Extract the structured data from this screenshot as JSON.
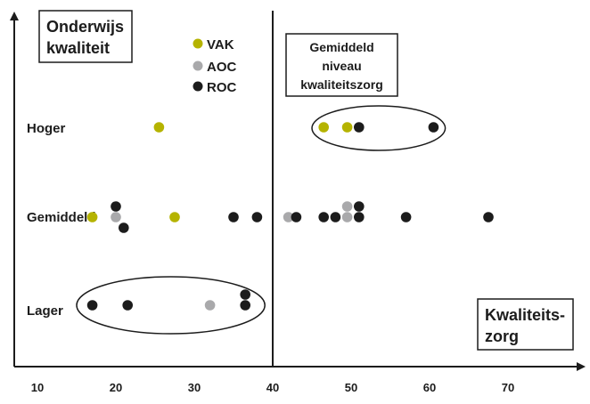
{
  "chart_data": {
    "type": "scatter",
    "xlim": [
      0,
      70
    ],
    "x_ticks": [
      "10",
      "20",
      "30",
      "40",
      "50",
      "60",
      "70"
    ],
    "categories": [
      "Lager",
      "Gemiddeld",
      "Hoger"
    ],
    "x_axis_title": "Kwaliteits- zorg",
    "x_axis_title_lines": [
      "Kwaliteits-",
      "zorg"
    ],
    "y_axis_title": "Onderwijs kwaliteit",
    "y_axis_title_lines": [
      "Onderwijs",
      "kwaliteit"
    ],
    "reference_line": {
      "x": 40,
      "label": "Gemiddeld niveau kwaliteitszorg",
      "label_lines": [
        "Gemiddeld",
        "niveau",
        "kwaliteitszorg"
      ]
    },
    "legend": {
      "position": "top-left",
      "items": [
        {
          "label": "VAK",
          "color": "#b5b300"
        },
        {
          "label": "AOC",
          "color": "#a9a9ab"
        },
        {
          "label": "ROC",
          "color": "#1c1c1c"
        }
      ]
    },
    "series": [
      {
        "name": "VAK",
        "color": "#b5b300",
        "points": [
          {
            "x": 25.5,
            "category": "Hoger"
          },
          {
            "x": 46.5,
            "category": "Hoger"
          },
          {
            "x": 49.5,
            "category": "Hoger"
          },
          {
            "x": 17,
            "category": "Gemiddeld"
          },
          {
            "x": 27.5,
            "category": "Gemiddeld"
          }
        ]
      },
      {
        "name": "AOC",
        "color": "#a9a9ab",
        "points": [
          {
            "x": 20,
            "category": "Gemiddeld"
          },
          {
            "x": 42,
            "category": "Gemiddeld"
          },
          {
            "x": 49.5,
            "category": "Gemiddeld"
          },
          {
            "x": 49.5,
            "category": "Gemiddeld",
            "stack": 1
          },
          {
            "x": 32,
            "category": "Lager"
          }
        ]
      },
      {
        "name": "ROC",
        "color": "#1c1c1c",
        "points": [
          {
            "x": 51,
            "category": "Hoger"
          },
          {
            "x": 60.5,
            "category": "Hoger"
          },
          {
            "x": 20,
            "category": "Gemiddeld",
            "stack": 1
          },
          {
            "x": 21,
            "category": "Gemiddeld",
            "stack": -1
          },
          {
            "x": 35,
            "category": "Gemiddeld"
          },
          {
            "x": 38,
            "category": "Gemiddeld"
          },
          {
            "x": 43,
            "category": "Gemiddeld"
          },
          {
            "x": 46.5,
            "category": "Gemiddeld"
          },
          {
            "x": 48,
            "category": "Gemiddeld"
          },
          {
            "x": 51,
            "category": "Gemiddeld"
          },
          {
            "x": 51,
            "category": "Gemiddeld",
            "stack": 1
          },
          {
            "x": 57,
            "category": "Gemiddeld"
          },
          {
            "x": 67.5,
            "category": "Gemiddeld"
          },
          {
            "x": 17,
            "category": "Lager"
          },
          {
            "x": 21.5,
            "category": "Lager"
          },
          {
            "x": 36.5,
            "category": "Lager"
          },
          {
            "x": 36.5,
            "category": "Lager",
            "stack": 1
          }
        ]
      }
    ],
    "groups_circled": [
      {
        "category": "Hoger",
        "x_range": [
          45,
          62
        ]
      },
      {
        "category": "Lager",
        "x_range": [
          15,
          39
        ]
      }
    ]
  }
}
